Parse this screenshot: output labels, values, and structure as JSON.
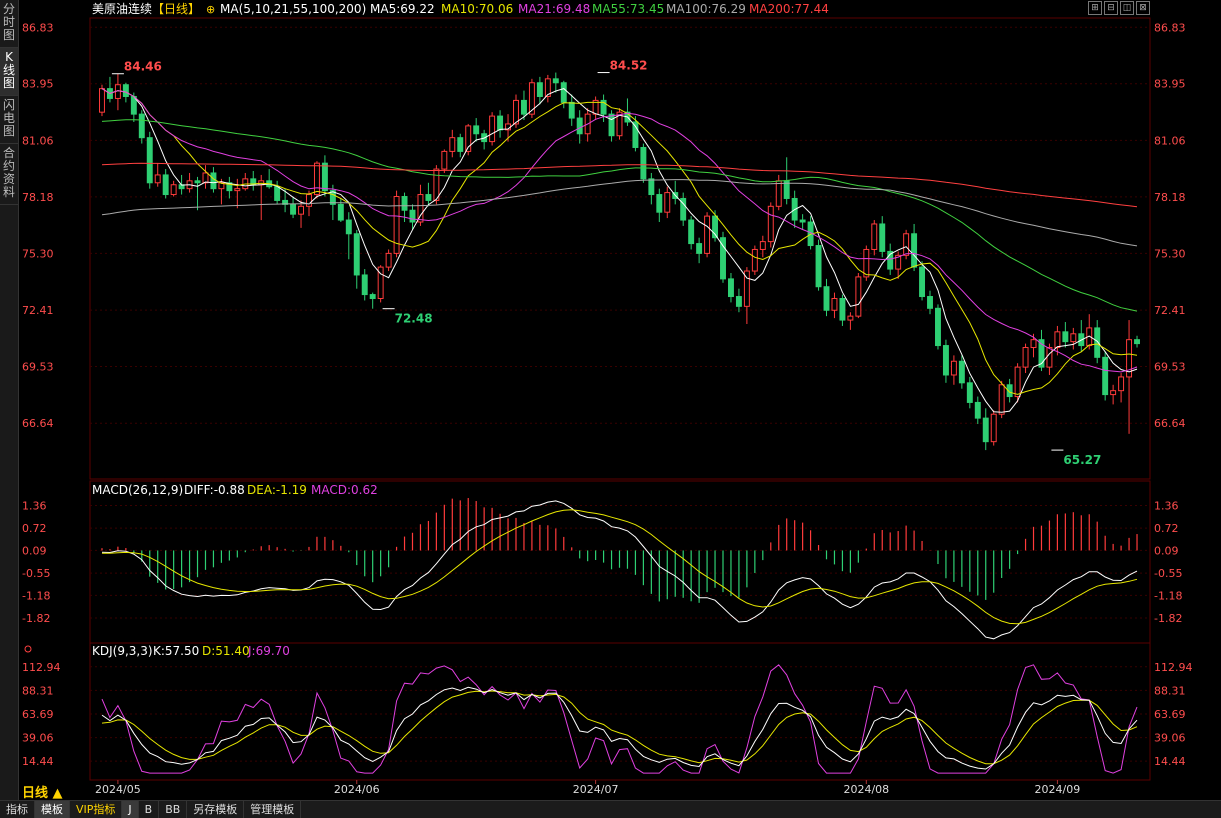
{
  "sidebar": {
    "tabs": [
      {
        "label": "分时图",
        "active": false
      },
      {
        "label": "K线图",
        "active": true
      },
      {
        "label": "闪电图",
        "active": false
      },
      {
        "label": "合约资料",
        "active": false
      }
    ]
  },
  "header": {
    "symbol": "美原油连续",
    "period": "【日线】",
    "ma_params": "MA(5,10,21,55,100,200)",
    "ma_values": [
      {
        "label": "MA5:69.22",
        "color": "#ffffff"
      },
      {
        "label": "MA10:70.06",
        "color": "#e6e600"
      },
      {
        "label": "MA21:69.48",
        "color": "#e040e0"
      },
      {
        "label": "MA55:73.45",
        "color": "#40d040"
      },
      {
        "label": "MA100:76.29",
        "color": "#aaaaaa"
      },
      {
        "label": "MA200:77.44",
        "color": "#ff4040"
      }
    ]
  },
  "macd_header": {
    "title": "MACD(26,12,9)",
    "diff": "DIFF:-0.88",
    "dea": "DEA:-1.19",
    "macd": "MACD:0.62"
  },
  "kdj_header": {
    "title": "KDJ(9,3,3)",
    "k": "K:57.50",
    "d": "D:51.40",
    "j": "J:69.70"
  },
  "bottom_bar": {
    "period": "日线 ▲",
    "tabs": [
      "指标",
      "模板",
      "VIP指标",
      "J",
      "B",
      "BB",
      "另存模板",
      "管理模板"
    ],
    "active": "模板"
  },
  "colors": {
    "up": "#ff3b3b",
    "down": "#2ecf73",
    "grid": "#3a0000",
    "axis_text": "#ff4d4d",
    "diff": "#ffffff",
    "dea": "#e6e600",
    "kdj_k": "#ffffff",
    "kdj_d": "#e6e600",
    "kdj_j": "#e040e0"
  },
  "chart_data": [
    {
      "type": "candlestick",
      "title": "美原油连续【日线】",
      "ylim": [
        64.0,
        87.2
      ],
      "y_ticks": [
        "86.83",
        "83.95",
        "81.06",
        "78.18",
        "75.30",
        "72.41",
        "69.53",
        "66.64"
      ],
      "x_ticks": [
        "2024/05",
        "2024/06",
        "2024/07",
        "2024/08",
        "2024/09"
      ],
      "annotations": [
        {
          "text": "84.46",
          "bar": 2,
          "value": 84.46
        },
        {
          "text": "84.52",
          "bar": 63,
          "value": 84.52
        },
        {
          "text": "72.48",
          "bar": 36,
          "value": 72.48
        },
        {
          "text": "65.27",
          "bar": 120,
          "value": 65.27
        }
      ],
      "month_starts": [
        2,
        32,
        62,
        96,
        120
      ],
      "ohlc": [
        [
          82.5,
          83.9,
          82.3,
          83.7
        ],
        [
          83.7,
          84.3,
          83.0,
          83.2
        ],
        [
          83.2,
          84.46,
          82.6,
          83.9
        ],
        [
          83.9,
          84.0,
          83.0,
          83.3
        ],
        [
          83.3,
          83.5,
          82.0,
          82.4
        ],
        [
          82.4,
          82.6,
          80.9,
          81.2
        ],
        [
          81.2,
          81.5,
          78.6,
          78.9
        ],
        [
          78.9,
          79.9,
          78.7,
          79.3
        ],
        [
          79.3,
          79.6,
          78.1,
          78.3
        ],
        [
          78.3,
          79.0,
          78.2,
          78.8
        ],
        [
          78.8,
          79.3,
          78.3,
          78.6
        ],
        [
          78.6,
          79.4,
          78.4,
          79.0
        ],
        [
          79.0,
          79.2,
          77.5,
          78.9
        ],
        [
          78.9,
          79.8,
          78.6,
          79.4
        ],
        [
          79.4,
          79.7,
          78.4,
          78.6
        ],
        [
          78.6,
          79.1,
          77.8,
          78.9
        ],
        [
          78.9,
          79.2,
          78.1,
          78.5
        ],
        [
          78.5,
          79.1,
          77.6,
          78.6
        ],
        [
          78.6,
          79.4,
          78.5,
          79.1
        ],
        [
          79.1,
          79.5,
          78.5,
          78.8
        ],
        [
          78.8,
          79.3,
          77.0,
          79.0
        ],
        [
          79.0,
          79.6,
          78.6,
          78.7
        ],
        [
          78.7,
          79.0,
          77.8,
          78.0
        ],
        [
          78.0,
          78.6,
          77.4,
          77.8
        ],
        [
          77.8,
          78.2,
          77.1,
          77.3
        ],
        [
          77.3,
          78.0,
          76.6,
          77.7
        ],
        [
          77.7,
          78.5,
          77.2,
          78.3
        ],
        [
          78.3,
          80.0,
          78.1,
          79.9
        ],
        [
          79.9,
          80.3,
          78.2,
          78.5
        ],
        [
          78.5,
          78.8,
          77.0,
          77.8
        ],
        [
          77.8,
          78.1,
          76.9,
          77.0
        ],
        [
          77.0,
          77.4,
          75.0,
          76.3
        ],
        [
          76.3,
          76.5,
          73.5,
          74.2
        ],
        [
          74.2,
          74.5,
          72.9,
          73.2
        ],
        [
          73.2,
          73.3,
          72.48,
          73.0
        ],
        [
          73.0,
          74.7,
          72.8,
          74.6
        ],
        [
          74.6,
          75.5,
          74.4,
          75.3
        ],
        [
          75.3,
          78.5,
          75.1,
          78.2
        ],
        [
          78.2,
          78.4,
          76.9,
          77.5
        ],
        [
          77.5,
          77.8,
          76.5,
          76.9
        ],
        [
          76.9,
          78.8,
          76.7,
          78.3
        ],
        [
          78.3,
          78.9,
          77.7,
          78.0
        ],
        [
          78.0,
          79.8,
          77.8,
          79.6
        ],
        [
          79.6,
          80.6,
          79.4,
          80.5
        ],
        [
          80.5,
          81.6,
          80.2,
          81.2
        ],
        [
          81.2,
          81.4,
          80.2,
          80.5
        ],
        [
          80.5,
          81.9,
          80.3,
          81.8
        ],
        [
          81.8,
          82.2,
          81.0,
          81.4
        ],
        [
          81.4,
          81.6,
          80.6,
          81.0
        ],
        [
          81.0,
          82.5,
          80.8,
          82.3
        ],
        [
          82.3,
          82.6,
          81.2,
          81.6
        ],
        [
          81.6,
          82.4,
          81.0,
          81.9
        ],
        [
          81.9,
          83.4,
          81.7,
          83.1
        ],
        [
          83.1,
          83.6,
          82.1,
          82.4
        ],
        [
          82.4,
          84.2,
          82.2,
          84.0
        ],
        [
          84.0,
          84.3,
          82.9,
          83.3
        ],
        [
          83.3,
          84.4,
          83.0,
          84.2
        ],
        [
          84.2,
          84.52,
          83.5,
          84.0
        ],
        [
          84.0,
          84.1,
          82.7,
          83.0
        ],
        [
          83.0,
          83.4,
          81.8,
          82.2
        ],
        [
          82.2,
          82.6,
          80.9,
          81.4
        ],
        [
          81.4,
          82.7,
          81.0,
          82.4
        ],
        [
          82.4,
          83.3,
          82.1,
          83.1
        ],
        [
          83.1,
          83.4,
          82.0,
          82.4
        ],
        [
          82.4,
          82.6,
          81.0,
          81.3
        ],
        [
          81.3,
          82.7,
          81.1,
          82.5
        ],
        [
          82.5,
          83.2,
          81.8,
          82.0
        ],
        [
          82.0,
          82.3,
          80.5,
          80.7
        ],
        [
          80.7,
          80.9,
          78.9,
          79.1
        ],
        [
          79.1,
          79.4,
          77.8,
          78.3
        ],
        [
          78.3,
          78.6,
          76.9,
          77.4
        ],
        [
          77.4,
          78.7,
          77.1,
          78.4
        ],
        [
          78.4,
          79.0,
          77.8,
          78.1
        ],
        [
          78.1,
          78.4,
          76.7,
          77.0
        ],
        [
          77.0,
          77.2,
          75.5,
          75.8
        ],
        [
          75.8,
          76.1,
          74.8,
          75.3
        ],
        [
          75.3,
          77.4,
          75.1,
          77.2
        ],
        [
          77.2,
          77.5,
          75.9,
          76.1
        ],
        [
          76.1,
          76.4,
          73.8,
          74.0
        ],
        [
          74.0,
          74.3,
          72.8,
          73.1
        ],
        [
          73.1,
          73.5,
          72.3,
          72.6
        ],
        [
          72.6,
          74.6,
          71.7,
          74.4
        ],
        [
          74.4,
          75.7,
          74.2,
          75.5
        ],
        [
          75.5,
          76.2,
          75.1,
          75.9
        ],
        [
          75.9,
          77.9,
          75.6,
          77.7
        ],
        [
          77.7,
          79.3,
          77.5,
          79.0
        ],
        [
          79.0,
          80.2,
          77.8,
          78.1
        ],
        [
          78.1,
          78.5,
          76.6,
          77.0
        ],
        [
          77.0,
          77.3,
          76.5,
          76.9
        ],
        [
          76.9,
          77.2,
          75.5,
          75.7
        ],
        [
          75.7,
          76.0,
          73.4,
          73.6
        ],
        [
          73.6,
          74.0,
          72.1,
          72.4
        ],
        [
          72.4,
          73.3,
          72.0,
          73.0
        ],
        [
          73.0,
          73.2,
          71.6,
          71.9
        ],
        [
          71.9,
          72.3,
          71.4,
          72.1
        ],
        [
          72.1,
          74.3,
          72.0,
          74.1
        ],
        [
          74.1,
          75.7,
          73.9,
          75.5
        ],
        [
          75.5,
          77.0,
          75.2,
          76.8
        ],
        [
          76.8,
          77.2,
          75.1,
          75.4
        ],
        [
          75.4,
          75.8,
          74.2,
          74.5
        ],
        [
          74.5,
          75.4,
          74.0,
          75.2
        ],
        [
          75.2,
          76.5,
          75.0,
          76.3
        ],
        [
          76.3,
          76.8,
          74.4,
          74.6
        ],
        [
          74.6,
          74.9,
          72.9,
          73.1
        ],
        [
          73.1,
          73.4,
          72.2,
          72.5
        ],
        [
          72.5,
          72.7,
          70.4,
          70.6
        ],
        [
          70.6,
          70.9,
          68.7,
          69.1
        ],
        [
          69.1,
          70.1,
          68.6,
          69.8
        ],
        [
          69.8,
          70.1,
          68.4,
          68.7
        ],
        [
          68.7,
          69.0,
          67.4,
          67.7
        ],
        [
          67.7,
          68.0,
          66.6,
          66.9
        ],
        [
          66.9,
          67.4,
          65.27,
          65.7
        ],
        [
          65.7,
          67.3,
          65.5,
          67.1
        ],
        [
          67.1,
          68.8,
          66.9,
          68.6
        ],
        [
          68.6,
          68.9,
          67.7,
          68.0
        ],
        [
          68.0,
          69.7,
          67.7,
          69.5
        ],
        [
          69.5,
          70.7,
          69.2,
          70.5
        ],
        [
          70.5,
          71.2,
          70.0,
          70.9
        ],
        [
          70.9,
          71.4,
          69.3,
          69.5
        ],
        [
          69.5,
          70.7,
          69.1,
          70.5
        ],
        [
          70.5,
          71.6,
          70.1,
          71.3
        ],
        [
          71.3,
          71.8,
          70.5,
          70.8
        ],
        [
          70.8,
          71.5,
          70.4,
          71.2
        ],
        [
          71.2,
          71.9,
          70.3,
          70.6
        ],
        [
          70.6,
          72.2,
          70.4,
          71.5
        ],
        [
          71.5,
          71.9,
          69.7,
          70.0
        ],
        [
          70.0,
          70.3,
          67.8,
          68.1
        ],
        [
          68.1,
          68.6,
          67.6,
          68.3
        ],
        [
          68.3,
          69.2,
          67.7,
          69.0
        ],
        [
          69.0,
          71.9,
          66.1,
          70.9
        ],
        [
          70.9,
          71.1,
          70.5,
          70.7
        ]
      ],
      "series": [
        {
          "name": "MA5"
        },
        {
          "name": "MA10"
        },
        {
          "name": "MA21"
        },
        {
          "name": "MA55"
        },
        {
          "name": "MA100"
        },
        {
          "name": "MA200"
        }
      ]
    },
    {
      "type": "bar+line",
      "title": "MACD(26,12,9)",
      "ylim": [
        -2.3,
        1.6
      ],
      "y_ticks": [
        "1.36",
        "0.72",
        "0.09",
        "-0.55",
        "-1.18",
        "-1.82"
      ]
    },
    {
      "type": "line",
      "title": "KDJ(9,3,3)",
      "ylim": [
        0,
        120
      ],
      "y_ticks": [
        "112.94",
        "88.31",
        "63.69",
        "39.06",
        "14.44"
      ]
    }
  ]
}
